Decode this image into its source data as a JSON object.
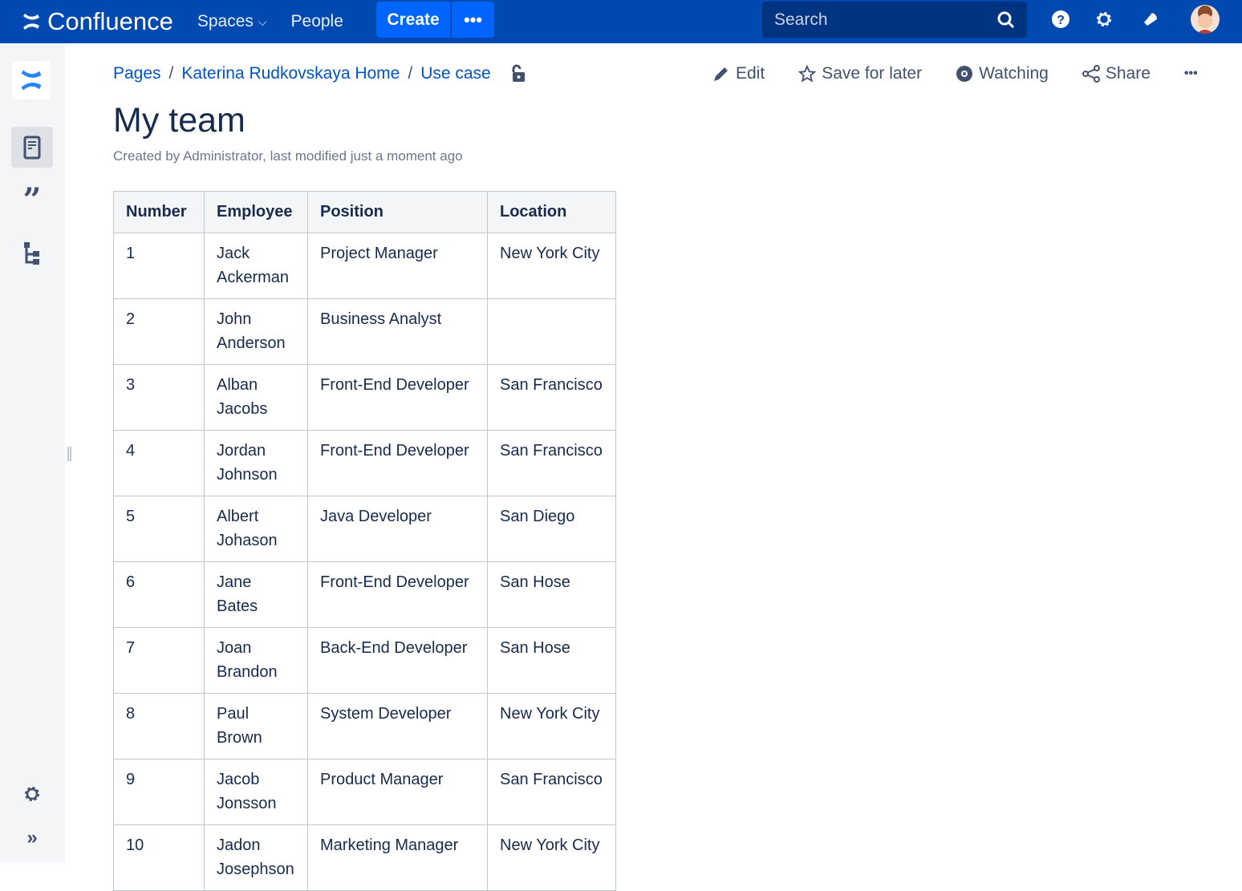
{
  "topbar": {
    "logo": "Confluence",
    "spaces": "Spaces",
    "people": "People",
    "create": "Create",
    "more": "•••",
    "search_placeholder": "Search"
  },
  "breadcrumb": [
    "Pages",
    "Katerina Rudkovskaya Home",
    "Use case"
  ],
  "actions": {
    "edit": "Edit",
    "save": "Save for later",
    "watching": "Watching",
    "share": "Share",
    "more": "•••"
  },
  "page": {
    "title": "My team",
    "meta": "Created by Administrator, last modified just a moment ago"
  },
  "table": {
    "headers": [
      "Number",
      "Employee",
      "Position",
      "Location"
    ],
    "rows": [
      [
        "1",
        "Jack Ackerman",
        "Project Manager",
        "New York City"
      ],
      [
        "2",
        "John Anderson",
        "Business Analyst",
        ""
      ],
      [
        "3",
        "Alban Jacobs",
        "Front-End Developer",
        "San Francisco"
      ],
      [
        "4",
        "Jordan Johnson",
        "Front-End Developer",
        "San Francisco"
      ],
      [
        "5",
        "Albert Johason",
        "Java Developer",
        "San Diego"
      ],
      [
        "6",
        "Jane Bates",
        "Front-End Developer",
        "San Hose"
      ],
      [
        "7",
        "Joan Brandon",
        "Back-End Developer",
        "San Hose"
      ],
      [
        "8",
        "Paul Brown",
        "System Developer",
        "New York City"
      ],
      [
        "9",
        "Jacob Jonsson",
        "Product Manager",
        "San Francisco"
      ],
      [
        "10",
        "Jadon Josephson",
        "Marketing Manager",
        "New York City"
      ]
    ]
  },
  "colors": {
    "topbar": "#0049b0",
    "accent": "#0065ff",
    "link": "#0052cc"
  }
}
